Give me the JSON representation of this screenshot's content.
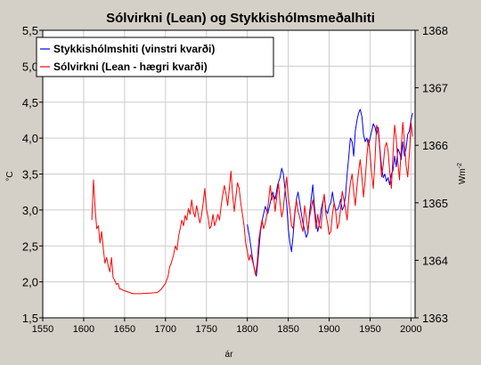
{
  "chart_data": {
    "type": "line",
    "title": "Sólvirkni (Lean) og Stykkishólmsmeðalhiti",
    "xlabel": "ár",
    "ylabel_left": "°C",
    "ylabel_right_base": "Wm",
    "ylabel_right_exp": "-2",
    "xlim": [
      1550,
      2005
    ],
    "ylim_left": [
      1.5,
      5.5
    ],
    "ylim_right": [
      1363,
      1368
    ],
    "x_ticks": [
      "1550",
      "1600",
      "1650",
      "1700",
      "1750",
      "1800",
      "1850",
      "1900",
      "1950",
      "2000"
    ],
    "y_left_ticks": [
      "1,5",
      "2,0",
      "2,5",
      "3,0",
      "3,5",
      "4,0",
      "4,5",
      "5,0",
      "5,5"
    ],
    "y_right_ticks": [
      "1363",
      "1364",
      "1365",
      "1366",
      "1367",
      "1368"
    ],
    "grid": true,
    "legend_placement": "top-left",
    "series": [
      {
        "name": "Stykkishólmshiti (vinstri kvarði)",
        "color": "#0000ff",
        "axis": "left",
        "points": [
          [
            1800,
            2.8
          ],
          [
            1803,
            2.6
          ],
          [
            1806,
            2.35
          ],
          [
            1809,
            2.15
          ],
          [
            1811,
            2.08
          ],
          [
            1813,
            2.3
          ],
          [
            1816,
            2.7
          ],
          [
            1819,
            2.9
          ],
          [
            1822,
            3.05
          ],
          [
            1825,
            2.95
          ],
          [
            1828,
            3.1
          ],
          [
            1831,
            3.25
          ],
          [
            1834,
            3.15
          ],
          [
            1837,
            3.35
          ],
          [
            1840,
            3.45
          ],
          [
            1842,
            3.58
          ],
          [
            1844,
            3.5
          ],
          [
            1846,
            3.3
          ],
          [
            1848,
            3.1
          ],
          [
            1850,
            2.75
          ],
          [
            1852,
            2.55
          ],
          [
            1854,
            2.42
          ],
          [
            1856,
            2.65
          ],
          [
            1858,
            2.95
          ],
          [
            1860,
            3.15
          ],
          [
            1862,
            3.25
          ],
          [
            1864,
            3.1
          ],
          [
            1866,
            2.95
          ],
          [
            1868,
            2.82
          ],
          [
            1870,
            2.72
          ],
          [
            1872,
            2.62
          ],
          [
            1874,
            2.68
          ],
          [
            1876,
            2.95
          ],
          [
            1878,
            3.15
          ],
          [
            1880,
            3.35
          ],
          [
            1882,
            3.05
          ],
          [
            1884,
            2.85
          ],
          [
            1886,
            2.7
          ],
          [
            1888,
            2.8
          ],
          [
            1890,
            3.0
          ],
          [
            1892,
            3.1
          ],
          [
            1894,
            3.2
          ],
          [
            1896,
            3.0
          ],
          [
            1898,
            2.95
          ],
          [
            1900,
            3.05
          ],
          [
            1902,
            3.1
          ],
          [
            1904,
            3.25
          ],
          [
            1906,
            3.1
          ],
          [
            1908,
            3.0
          ],
          [
            1910,
            3.0
          ],
          [
            1912,
            3.05
          ],
          [
            1914,
            3.15
          ],
          [
            1916,
            3.0
          ],
          [
            1918,
            3.05
          ],
          [
            1920,
            3.2
          ],
          [
            1922,
            3.5
          ],
          [
            1924,
            3.75
          ],
          [
            1926,
            4.0
          ],
          [
            1928,
            3.95
          ],
          [
            1930,
            3.75
          ],
          [
            1932,
            4.1
          ],
          [
            1934,
            4.25
          ],
          [
            1936,
            4.35
          ],
          [
            1938,
            4.4
          ],
          [
            1940,
            4.3
          ],
          [
            1942,
            4.05
          ],
          [
            1944,
            3.95
          ],
          [
            1946,
            4.0
          ],
          [
            1948,
            3.9
          ],
          [
            1950,
            4.0
          ],
          [
            1952,
            4.1
          ],
          [
            1954,
            4.2
          ],
          [
            1956,
            4.15
          ],
          [
            1958,
            4.05
          ],
          [
            1960,
            4.15
          ],
          [
            1962,
            3.85
          ],
          [
            1964,
            3.6
          ],
          [
            1966,
            3.45
          ],
          [
            1968,
            3.5
          ],
          [
            1970,
            3.4
          ],
          [
            1972,
            3.45
          ],
          [
            1974,
            3.35
          ],
          [
            1976,
            3.5
          ],
          [
            1978,
            3.55
          ],
          [
            1980,
            3.75
          ],
          [
            1982,
            3.6
          ],
          [
            1984,
            3.85
          ],
          [
            1986,
            3.8
          ],
          [
            1988,
            3.7
          ],
          [
            1990,
            3.95
          ],
          [
            1992,
            3.75
          ],
          [
            1994,
            3.85
          ],
          [
            1996,
            4.05
          ],
          [
            1998,
            4.1
          ],
          [
            2000,
            4.25
          ],
          [
            2002,
            4.35
          ]
        ]
      },
      {
        "name": "Sólvirkni (Lean - hægri kvarði)",
        "color": "#ff0000",
        "axis": "right",
        "points": [
          [
            1610,
            1364.7
          ],
          [
            1612,
            1365.4
          ],
          [
            1614,
            1364.9
          ],
          [
            1616,
            1364.55
          ],
          [
            1618,
            1364.6
          ],
          [
            1620,
            1364.3
          ],
          [
            1622,
            1364.5
          ],
          [
            1624,
            1364.2
          ],
          [
            1626,
            1363.95
          ],
          [
            1628,
            1364.05
          ],
          [
            1630,
            1363.9
          ],
          [
            1632,
            1363.8
          ],
          [
            1634,
            1364.05
          ],
          [
            1636,
            1363.7
          ],
          [
            1638,
            1363.65
          ],
          [
            1640,
            1363.58
          ],
          [
            1642,
            1363.6
          ],
          [
            1644,
            1363.5
          ],
          [
            1646,
            1363.5
          ],
          [
            1648,
            1363.48
          ],
          [
            1650,
            1363.47
          ],
          [
            1660,
            1363.42
          ],
          [
            1670,
            1363.42
          ],
          [
            1680,
            1363.43
          ],
          [
            1690,
            1363.44
          ],
          [
            1695,
            1363.5
          ],
          [
            1700,
            1363.6
          ],
          [
            1703,
            1363.72
          ],
          [
            1705,
            1363.88
          ],
          [
            1707,
            1363.95
          ],
          [
            1710,
            1364.1
          ],
          [
            1712,
            1364.25
          ],
          [
            1714,
            1364.18
          ],
          [
            1716,
            1364.42
          ],
          [
            1718,
            1364.55
          ],
          [
            1720,
            1364.7
          ],
          [
            1722,
            1364.6
          ],
          [
            1724,
            1364.78
          ],
          [
            1726,
            1364.7
          ],
          [
            1728,
            1364.9
          ],
          [
            1730,
            1364.8
          ],
          [
            1732,
            1365.05
          ],
          [
            1734,
            1364.85
          ],
          [
            1736,
            1364.75
          ],
          [
            1738,
            1364.95
          ],
          [
            1740,
            1364.8
          ],
          [
            1742,
            1364.65
          ],
          [
            1744,
            1364.78
          ],
          [
            1746,
            1365.0
          ],
          [
            1748,
            1365.25
          ],
          [
            1750,
            1364.9
          ],
          [
            1752,
            1364.75
          ],
          [
            1754,
            1364.55
          ],
          [
            1756,
            1364.6
          ],
          [
            1758,
            1364.8
          ],
          [
            1760,
            1364.6
          ],
          [
            1762,
            1364.7
          ],
          [
            1764,
            1364.8
          ],
          [
            1766,
            1364.7
          ],
          [
            1768,
            1364.95
          ],
          [
            1770,
            1365.15
          ],
          [
            1772,
            1365.3
          ],
          [
            1774,
            1365.15
          ],
          [
            1776,
            1364.95
          ],
          [
            1778,
            1365.25
          ],
          [
            1780,
            1365.55
          ],
          [
            1782,
            1365.15
          ],
          [
            1784,
            1364.85
          ],
          [
            1786,
            1365.1
          ],
          [
            1788,
            1365.35
          ],
          [
            1790,
            1365.25
          ],
          [
            1792,
            1365.0
          ],
          [
            1794,
            1364.8
          ],
          [
            1796,
            1364.6
          ],
          [
            1798,
            1364.3
          ],
          [
            1800,
            1364.15
          ],
          [
            1802,
            1364.0
          ],
          [
            1804,
            1364.1
          ],
          [
            1806,
            1364.0
          ],
          [
            1808,
            1363.9
          ],
          [
            1810,
            1363.75
          ],
          [
            1812,
            1363.95
          ],
          [
            1814,
            1364.35
          ],
          [
            1816,
            1364.55
          ],
          [
            1818,
            1364.7
          ],
          [
            1820,
            1364.55
          ],
          [
            1822,
            1364.65
          ],
          [
            1824,
            1364.8
          ],
          [
            1826,
            1365.05
          ],
          [
            1828,
            1365.3
          ],
          [
            1830,
            1365.05
          ],
          [
            1832,
            1365.15
          ],
          [
            1834,
            1364.85
          ],
          [
            1836,
            1365.1
          ],
          [
            1838,
            1365.35
          ],
          [
            1840,
            1365.0
          ],
          [
            1842,
            1364.75
          ],
          [
            1844,
            1364.9
          ],
          [
            1846,
            1365.2
          ],
          [
            1848,
            1365.45
          ],
          [
            1850,
            1365.1
          ],
          [
            1852,
            1364.9
          ],
          [
            1854,
            1364.6
          ],
          [
            1856,
            1364.55
          ],
          [
            1858,
            1364.85
          ],
          [
            1860,
            1365.05
          ],
          [
            1862,
            1364.85
          ],
          [
            1864,
            1364.75
          ],
          [
            1866,
            1364.6
          ],
          [
            1868,
            1364.5
          ],
          [
            1870,
            1364.95
          ],
          [
            1872,
            1364.75
          ],
          [
            1874,
            1364.5
          ],
          [
            1876,
            1364.75
          ],
          [
            1878,
            1364.9
          ],
          [
            1880,
            1365.05
          ],
          [
            1882,
            1364.85
          ],
          [
            1884,
            1364.55
          ],
          [
            1886,
            1364.8
          ],
          [
            1888,
            1364.6
          ],
          [
            1890,
            1364.55
          ],
          [
            1892,
            1364.95
          ],
          [
            1894,
            1365.15
          ],
          [
            1896,
            1364.8
          ],
          [
            1898,
            1364.65
          ],
          [
            1900,
            1364.45
          ],
          [
            1902,
            1364.5
          ],
          [
            1904,
            1364.8
          ],
          [
            1906,
            1365.0
          ],
          [
            1908,
            1364.85
          ],
          [
            1910,
            1364.55
          ],
          [
            1912,
            1364.65
          ],
          [
            1914,
            1364.9
          ],
          [
            1916,
            1365.2
          ],
          [
            1918,
            1365.05
          ],
          [
            1920,
            1364.9
          ],
          [
            1922,
            1364.7
          ],
          [
            1924,
            1365.1
          ],
          [
            1926,
            1365.35
          ],
          [
            1928,
            1365.5
          ],
          [
            1930,
            1365.2
          ],
          [
            1932,
            1364.95
          ],
          [
            1934,
            1365.3
          ],
          [
            1936,
            1365.55
          ],
          [
            1938,
            1365.75
          ],
          [
            1940,
            1365.45
          ],
          [
            1942,
            1365.1
          ],
          [
            1944,
            1365.4
          ],
          [
            1946,
            1365.8
          ],
          [
            1948,
            1366.1
          ],
          [
            1950,
            1365.85
          ],
          [
            1952,
            1365.5
          ],
          [
            1954,
            1365.25
          ],
          [
            1956,
            1365.75
          ],
          [
            1958,
            1366.35
          ],
          [
            1960,
            1366.25
          ],
          [
            1962,
            1365.9
          ],
          [
            1964,
            1365.45
          ],
          [
            1966,
            1365.65
          ],
          [
            1968,
            1365.95
          ],
          [
            1970,
            1366.05
          ],
          [
            1972,
            1365.9
          ],
          [
            1974,
            1365.55
          ],
          [
            1976,
            1365.25
          ],
          [
            1978,
            1365.85
          ],
          [
            1980,
            1366.35
          ],
          [
            1982,
            1366.1
          ],
          [
            1984,
            1365.7
          ],
          [
            1986,
            1365.4
          ],
          [
            1988,
            1365.95
          ],
          [
            1990,
            1366.4
          ],
          [
            1992,
            1366.05
          ],
          [
            1994,
            1365.65
          ],
          [
            1996,
            1365.45
          ],
          [
            1998,
            1365.85
          ],
          [
            2000,
            1366.4
          ],
          [
            2002,
            1366.15
          ]
        ]
      }
    ]
  }
}
